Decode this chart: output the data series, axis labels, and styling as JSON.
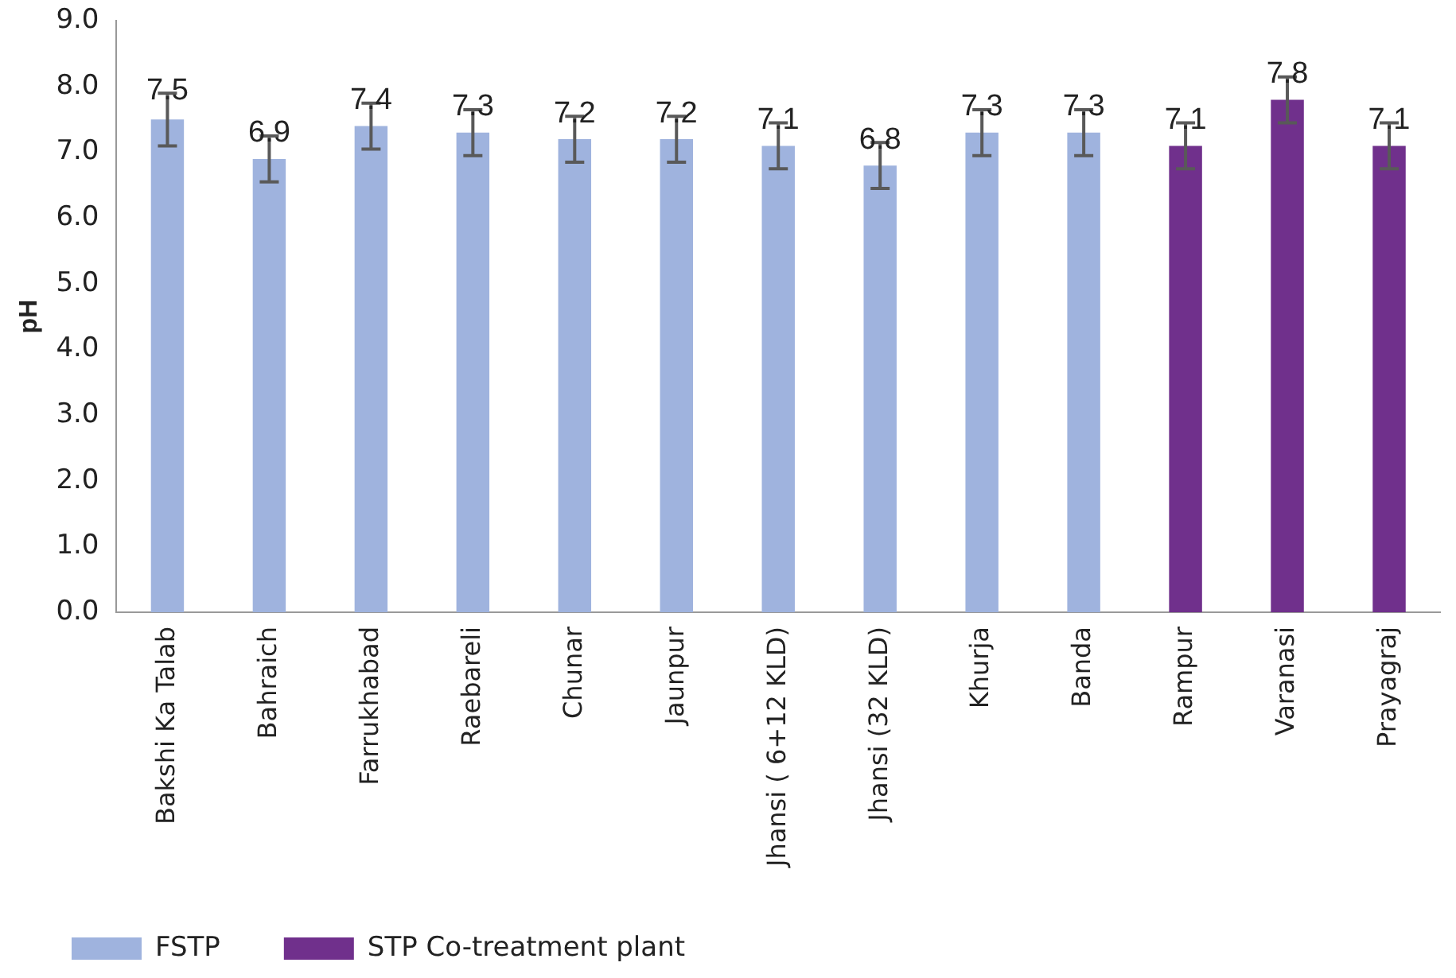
{
  "chart_data": {
    "type": "bar",
    "ylabel": "pH",
    "categories": [
      "Bakshi Ka Talab",
      "Bahraich",
      "Farrukhabad",
      "Raebareli",
      "Chunar",
      "Jaunpur",
      "Jhansi ( 6+12 KLD)",
      "Jhansi (32 KLD)",
      "Khurja",
      "Banda",
      "Rampur",
      "Varanasi",
      "Prayagraj"
    ],
    "series": [
      {
        "name": "FSTP",
        "color": "#9fb3de",
        "values": [
          7.5,
          6.9,
          7.4,
          7.3,
          7.2,
          7.2,
          7.1,
          6.8,
          7.3,
          7.3,
          null,
          null,
          null
        ],
        "errors": [
          0.4,
          0.35,
          0.35,
          0.35,
          0.35,
          0.35,
          0.35,
          0.35,
          0.35,
          0.35,
          null,
          null,
          null
        ]
      },
      {
        "name": "STP Co-treatment plant",
        "color": "#70308c",
        "values": [
          null,
          null,
          null,
          null,
          null,
          null,
          null,
          null,
          null,
          null,
          7.1,
          7.8,
          7.1
        ],
        "errors": [
          null,
          null,
          null,
          null,
          null,
          null,
          null,
          null,
          null,
          null,
          0.35,
          0.35,
          0.35
        ]
      }
    ],
    "ylim": [
      0,
      9
    ],
    "yticks": [
      {
        "value": 0,
        "label": "0.0"
      },
      {
        "value": 1,
        "label": "1.0"
      },
      {
        "value": 2,
        "label": "2.0"
      },
      {
        "value": 3,
        "label": "3.0"
      },
      {
        "value": 4,
        "label": "4.0"
      },
      {
        "value": 5,
        "label": "5.0"
      },
      {
        "value": 6,
        "label": "6.0"
      },
      {
        "value": 7,
        "label": "7.0"
      },
      {
        "value": 8,
        "label": "8.0"
      },
      {
        "value": 9,
        "label": "9.0"
      }
    ],
    "data_labels": true,
    "legend": "bottom left",
    "grid": false
  }
}
